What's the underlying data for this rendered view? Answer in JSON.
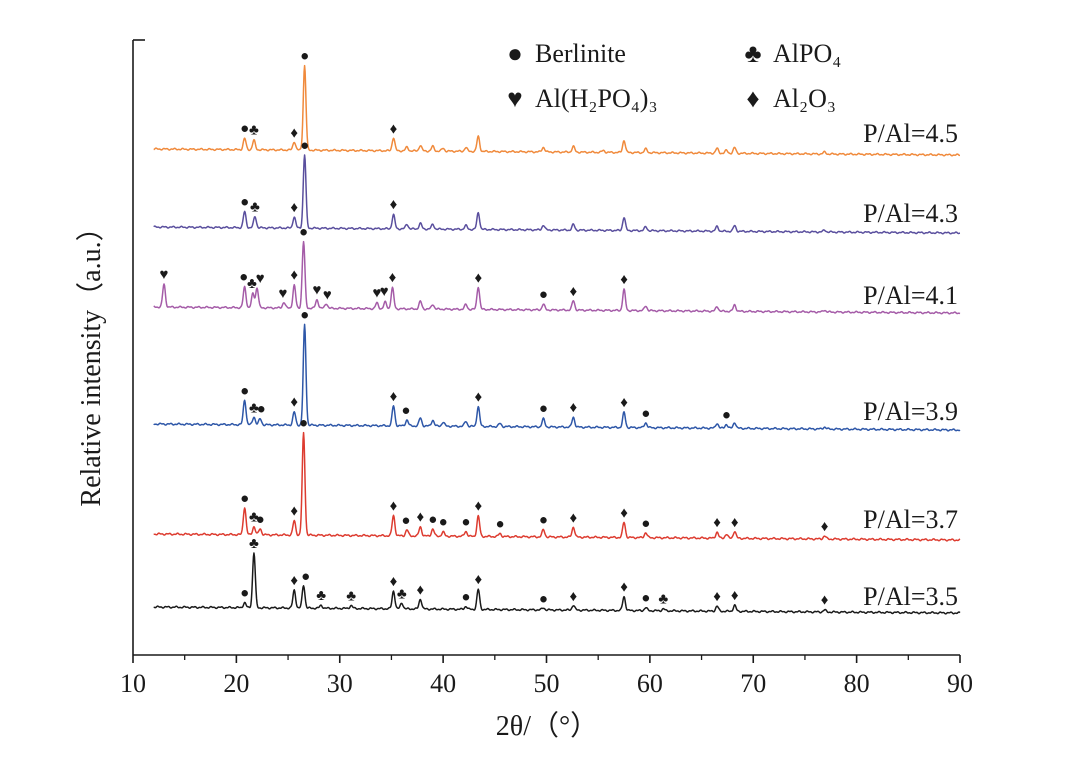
{
  "chart_data": {
    "type": "line",
    "xlabel": "2θ/（°）",
    "ylabel": "Relative intensity（a.u.）",
    "xlim": [
      10,
      90
    ],
    "x_ticks": [
      "10",
      "20",
      "30",
      "40",
      "50",
      "60",
      "70",
      "80",
      "90"
    ],
    "grid": false,
    "legend": {
      "placement": "top-right",
      "entries": [
        {
          "symbol": "●",
          "text": "Berlinite"
        },
        {
          "symbol": "♣",
          "text": "AlPO₄"
        },
        {
          "symbol": "♥",
          "text": "Al(H₂PO₄)₃"
        },
        {
          "symbol": "♦",
          "text": "Al₂O₃"
        }
      ]
    },
    "series": [
      {
        "name": "P/Al=4.5",
        "color": "#f08a3c",
        "peaks": [
          [
            20.8,
            0.12
          ],
          [
            21.7,
            0.1
          ],
          [
            25.6,
            0.09
          ],
          [
            26.6,
            0.9
          ],
          [
            35.2,
            0.14
          ],
          [
            36.5,
            0.04
          ],
          [
            37.8,
            0.06
          ],
          [
            39.0,
            0.05
          ],
          [
            40.0,
            0.03
          ],
          [
            42.2,
            0.04
          ],
          [
            43.4,
            0.16
          ],
          [
            49.7,
            0.05
          ],
          [
            52.6,
            0.06
          ],
          [
            55.5,
            0.02
          ],
          [
            57.5,
            0.13
          ],
          [
            59.6,
            0.04
          ],
          [
            66.5,
            0.05
          ],
          [
            67.4,
            0.03
          ],
          [
            68.2,
            0.06
          ],
          [
            76.9,
            0.02
          ]
        ],
        "markers": [
          {
            "x": 26.6,
            "s": "●"
          },
          {
            "x": 20.8,
            "s": "●"
          },
          {
            "x": 21.7,
            "s": "♣"
          },
          {
            "x": 25.6,
            "s": "♦"
          },
          {
            "x": 35.2,
            "s": "♦"
          }
        ]
      },
      {
        "name": "P/Al=4.3",
        "color": "#5a4f9e",
        "peaks": [
          [
            20.8,
            0.17
          ],
          [
            21.8,
            0.12
          ],
          [
            25.6,
            0.12
          ],
          [
            26.6,
            0.78
          ],
          [
            35.2,
            0.15
          ],
          [
            36.5,
            0.05
          ],
          [
            37.8,
            0.06
          ],
          [
            39.0,
            0.05
          ],
          [
            42.2,
            0.04
          ],
          [
            43.4,
            0.18
          ],
          [
            49.7,
            0.05
          ],
          [
            52.6,
            0.06
          ],
          [
            57.5,
            0.14
          ],
          [
            59.6,
            0.04
          ],
          [
            66.5,
            0.05
          ],
          [
            68.2,
            0.06
          ],
          [
            76.9,
            0.02
          ]
        ],
        "markers": [
          {
            "x": 26.6,
            "s": "●"
          },
          {
            "x": 20.8,
            "s": "●"
          },
          {
            "x": 21.8,
            "s": "♣"
          },
          {
            "x": 25.6,
            "s": "♦"
          },
          {
            "x": 35.2,
            "s": "♦"
          }
        ]
      },
      {
        "name": "P/Al=4.1",
        "color": "#a55ca8",
        "peaks": [
          [
            13.0,
            0.24
          ],
          [
            20.8,
            0.22
          ],
          [
            21.6,
            0.15
          ],
          [
            22.0,
            0.21
          ],
          [
            24.6,
            0.06
          ],
          [
            25.6,
            0.24
          ],
          [
            26.5,
            0.7
          ],
          [
            27.8,
            0.09
          ],
          [
            28.7,
            0.05
          ],
          [
            33.6,
            0.06
          ],
          [
            34.4,
            0.07
          ],
          [
            35.1,
            0.22
          ],
          [
            37.8,
            0.08
          ],
          [
            39.0,
            0.05
          ],
          [
            42.2,
            0.05
          ],
          [
            43.4,
            0.24
          ],
          [
            49.7,
            0.06
          ],
          [
            52.6,
            0.1
          ],
          [
            57.5,
            0.22
          ],
          [
            59.6,
            0.05
          ],
          [
            66.5,
            0.05
          ],
          [
            68.2,
            0.07
          ],
          [
            76.9,
            0.02
          ]
        ],
        "markers": [
          {
            "x": 26.5,
            "s": "●"
          },
          {
            "x": 13.0,
            "s": "♥"
          },
          {
            "x": 20.7,
            "s": "●"
          },
          {
            "x": 21.5,
            "s": "♣"
          },
          {
            "x": 22.3,
            "s": "♥"
          },
          {
            "x": 24.5,
            "s": "♥"
          },
          {
            "x": 25.6,
            "s": "♦"
          },
          {
            "x": 27.8,
            "s": "♥"
          },
          {
            "x": 28.8,
            "s": "♥"
          },
          {
            "x": 33.6,
            "s": "♥"
          },
          {
            "x": 34.3,
            "s": "♥"
          },
          {
            "x": 35.1,
            "s": "♦"
          },
          {
            "x": 43.4,
            "s": "♦"
          },
          {
            "x": 49.7,
            "s": "●"
          },
          {
            "x": 52.6,
            "s": "♦"
          },
          {
            "x": 57.5,
            "s": "♦"
          }
        ]
      },
      {
        "name": "P/Al=3.9",
        "color": "#2e57a8",
        "peaks": [
          [
            20.8,
            0.25
          ],
          [
            21.7,
            0.08
          ],
          [
            22.3,
            0.06
          ],
          [
            25.6,
            0.13
          ],
          [
            26.6,
            1.0
          ],
          [
            35.2,
            0.2
          ],
          [
            36.5,
            0.06
          ],
          [
            37.8,
            0.08
          ],
          [
            39.0,
            0.06
          ],
          [
            40.0,
            0.04
          ],
          [
            42.2,
            0.05
          ],
          [
            43.4,
            0.2
          ],
          [
            45.5,
            0.03
          ],
          [
            49.7,
            0.08
          ],
          [
            52.6,
            0.1
          ],
          [
            57.5,
            0.15
          ],
          [
            59.6,
            0.05
          ],
          [
            66.5,
            0.05
          ],
          [
            67.4,
            0.04
          ],
          [
            68.2,
            0.06
          ],
          [
            76.9,
            0.02
          ]
        ],
        "markers": [
          {
            "x": 26.6,
            "s": "●"
          },
          {
            "x": 20.8,
            "s": "●"
          },
          {
            "x": 21.7,
            "s": "♣"
          },
          {
            "x": 22.4,
            "s": "●"
          },
          {
            "x": 25.6,
            "s": "♦"
          },
          {
            "x": 35.2,
            "s": "♦"
          },
          {
            "x": 36.4,
            "s": "●"
          },
          {
            "x": 43.4,
            "s": "♦"
          },
          {
            "x": 49.7,
            "s": "●"
          },
          {
            "x": 52.6,
            "s": "♦"
          },
          {
            "x": 57.5,
            "s": "♦"
          },
          {
            "x": 59.6,
            "s": "●"
          },
          {
            "x": 67.4,
            "s": "●"
          }
        ]
      },
      {
        "name": "P/Al=3.7",
        "color": "#dd3c30",
        "peaks": [
          [
            20.8,
            0.27
          ],
          [
            21.7,
            0.08
          ],
          [
            22.3,
            0.06
          ],
          [
            25.6,
            0.14
          ],
          [
            26.5,
            1.0
          ],
          [
            35.2,
            0.2
          ],
          [
            36.5,
            0.06
          ],
          [
            37.8,
            0.09
          ],
          [
            39.0,
            0.07
          ],
          [
            40.0,
            0.04
          ],
          [
            42.2,
            0.05
          ],
          [
            43.4,
            0.2
          ],
          [
            45.5,
            0.03
          ],
          [
            49.7,
            0.07
          ],
          [
            52.6,
            0.1
          ],
          [
            57.5,
            0.15
          ],
          [
            59.6,
            0.05
          ],
          [
            66.5,
            0.06
          ],
          [
            67.4,
            0.04
          ],
          [
            68.2,
            0.07
          ],
          [
            76.9,
            0.03
          ]
        ],
        "markers": [
          {
            "x": 26.5,
            "s": "●"
          },
          {
            "x": 20.8,
            "s": "●"
          },
          {
            "x": 21.7,
            "s": "♣"
          },
          {
            "x": 22.3,
            "s": "●"
          },
          {
            "x": 25.6,
            "s": "♦"
          },
          {
            "x": 35.2,
            "s": "♦"
          },
          {
            "x": 36.4,
            "s": "●"
          },
          {
            "x": 37.8,
            "s": "♦"
          },
          {
            "x": 39.0,
            "s": "●"
          },
          {
            "x": 40.0,
            "s": "●"
          },
          {
            "x": 42.2,
            "s": "●"
          },
          {
            "x": 43.4,
            "s": "♦"
          },
          {
            "x": 45.5,
            "s": "●"
          },
          {
            "x": 49.7,
            "s": "●"
          },
          {
            "x": 52.6,
            "s": "♦"
          },
          {
            "x": 57.5,
            "s": "♦"
          },
          {
            "x": 59.6,
            "s": "●"
          },
          {
            "x": 66.5,
            "s": "♦"
          },
          {
            "x": 68.2,
            "s": "♦"
          },
          {
            "x": 76.9,
            "s": "♦"
          }
        ]
      },
      {
        "name": "P/Al=3.5",
        "color": "#1a1a1a",
        "peaks": [
          [
            20.8,
            0.05
          ],
          [
            21.7,
            0.55
          ],
          [
            25.6,
            0.18
          ],
          [
            26.5,
            0.23
          ],
          [
            28.2,
            0.03
          ],
          [
            31.1,
            0.03
          ],
          [
            35.2,
            0.18
          ],
          [
            36.0,
            0.06
          ],
          [
            37.8,
            0.1
          ],
          [
            42.2,
            0.03
          ],
          [
            43.4,
            0.2
          ],
          [
            49.7,
            0.02
          ],
          [
            52.6,
            0.05
          ],
          [
            57.5,
            0.14
          ],
          [
            59.6,
            0.03
          ],
          [
            61.3,
            0.02
          ],
          [
            66.5,
            0.05
          ],
          [
            68.2,
            0.06
          ],
          [
            76.9,
            0.02
          ]
        ],
        "markers": [
          {
            "x": 21.7,
            "s": "♣"
          },
          {
            "x": 20.8,
            "s": "●"
          },
          {
            "x": 25.6,
            "s": "♦"
          },
          {
            "x": 26.7,
            "s": "●"
          },
          {
            "x": 28.2,
            "s": "♣"
          },
          {
            "x": 31.1,
            "s": "♣"
          },
          {
            "x": 35.2,
            "s": "♦"
          },
          {
            "x": 36.0,
            "s": "♣"
          },
          {
            "x": 37.8,
            "s": "♦"
          },
          {
            "x": 42.2,
            "s": "●"
          },
          {
            "x": 43.4,
            "s": "♦"
          },
          {
            "x": 49.7,
            "s": "●"
          },
          {
            "x": 52.6,
            "s": "♦"
          },
          {
            "x": 57.5,
            "s": "♦"
          },
          {
            "x": 59.6,
            "s": "●"
          },
          {
            "x": 61.3,
            "s": "♣"
          },
          {
            "x": 66.5,
            "s": "♦"
          },
          {
            "x": 68.2,
            "s": "♦"
          },
          {
            "x": 76.9,
            "s": "♦"
          }
        ]
      }
    ]
  }
}
